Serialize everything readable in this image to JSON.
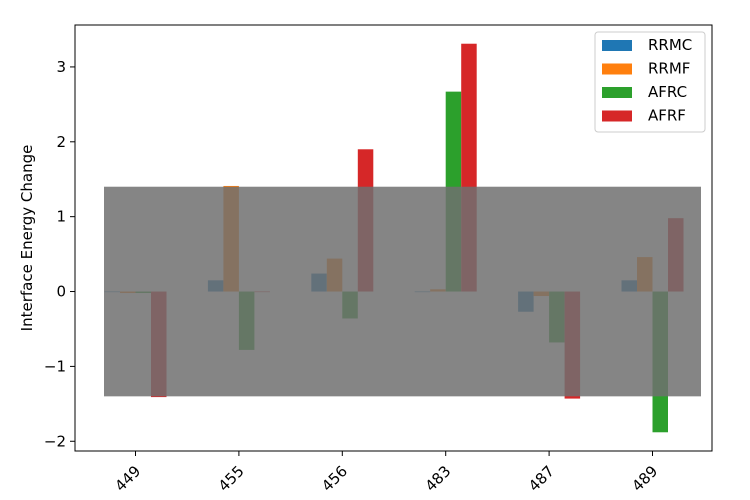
{
  "chart_data": {
    "type": "bar",
    "title": "",
    "xlabel": "",
    "ylabel": "Interface Energy Change",
    "categories": [
      "449",
      "455",
      "456",
      "483",
      "487",
      "489"
    ],
    "series": [
      {
        "name": "RRMC",
        "color": "#1f77b4",
        "values": [
          0.0,
          0.15,
          0.24,
          0.0,
          -0.27,
          0.15
        ]
      },
      {
        "name": "RRMF",
        "color": "#ff7f0e",
        "values": [
          -0.02,
          1.41,
          0.44,
          0.03,
          -0.06,
          0.46
        ]
      },
      {
        "name": "AFRC",
        "color": "#2ca02c",
        "values": [
          -0.02,
          -0.78,
          -0.36,
          2.67,
          -0.68,
          -1.88
        ]
      },
      {
        "name": "AFRF",
        "color": "#d62728",
        "values": [
          -1.41,
          0.0,
          1.9,
          3.31,
          -1.43,
          0.98
        ]
      }
    ],
    "ylim": [
      -2.13,
      3.56
    ],
    "yticks": [
      -2,
      -1,
      0,
      1,
      2,
      3
    ],
    "ytick_labels": [
      "−2",
      "−1",
      "0",
      "1",
      "2",
      "3"
    ],
    "shaded_band": {
      "y_from": -1.4,
      "y_to": 1.4,
      "color": "#707070"
    },
    "legend_position": "top-right",
    "grid": false
  }
}
